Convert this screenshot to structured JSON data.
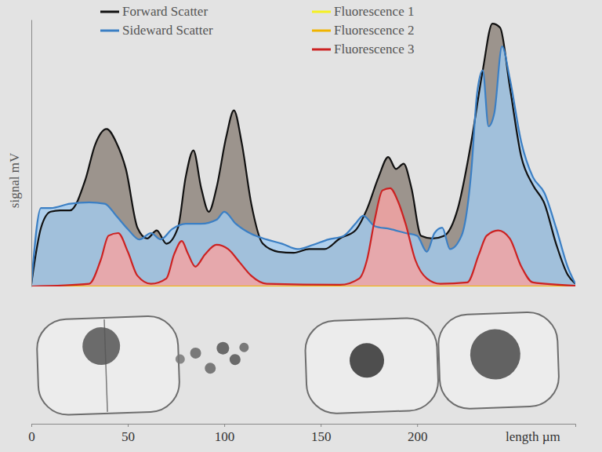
{
  "chart_data": {
    "type": "area",
    "xlabel": "length µm",
    "ylabel": "signal mV",
    "xlim": [
      0,
      282
    ],
    "xticks": [
      0,
      50,
      100,
      150,
      200
    ],
    "ylim": [
      0,
      100
    ],
    "yticks": [],
    "tick_labels": "x",
    "legend": "top",
    "series": [
      {
        "name": "Forward Scatter",
        "color": "#111111",
        "x": [
          0,
          5,
          10,
          15,
          20,
          28,
          33,
          39,
          44,
          49,
          55,
          60,
          65,
          70,
          76,
          80,
          84,
          88,
          92,
          96,
          101,
          105,
          109,
          114,
          120,
          128,
          136,
          144,
          152,
          160,
          168,
          174,
          180,
          185,
          189,
          193,
          197,
          202,
          208,
          214,
          221,
          228,
          234,
          239,
          243,
          248,
          254,
          260,
          266,
          272,
          278,
          282
        ],
        "values": [
          1,
          22,
          28,
          28.5,
          28.5,
          40,
          53,
          59,
          54,
          44,
          22,
          18,
          21,
          16,
          22,
          41,
          51,
          37,
          28,
          37,
          56,
          66,
          54,
          31,
          16,
          13,
          12.6,
          14,
          14,
          18,
          21,
          29,
          41,
          48.5,
          44,
          46,
          37,
          19,
          18,
          19,
          29,
          54,
          81,
          98.5,
          97,
          75,
          48.5,
          38,
          31,
          16,
          4.4,
          1
        ]
      },
      {
        "name": "Sideward Scatter",
        "color": "#3b7fc4",
        "x": [
          0,
          5,
          10,
          20,
          30,
          38,
          44,
          50,
          56,
          62,
          67,
          73,
          80,
          88,
          96,
          100,
          106,
          114,
          122,
          130,
          138,
          146,
          154,
          162,
          168,
          172,
          178,
          186,
          194,
          200,
          205,
          209,
          213,
          217,
          223,
          228,
          231,
          234,
          237,
          240,
          244,
          248,
          254,
          260,
          266,
          272,
          278,
          282
        ],
        "values": [
          1,
          29.4,
          29.4,
          31,
          31.5,
          31,
          26.5,
          21.5,
          17.6,
          20,
          17.6,
          21.5,
          23.5,
          23.5,
          25,
          28,
          23.5,
          19.7,
          17.6,
          16,
          14,
          15.6,
          17.6,
          19,
          23.5,
          26.5,
          22.6,
          21.5,
          20,
          19,
          13,
          20,
          22,
          14,
          19,
          42.6,
          72,
          81,
          60,
          65,
          90,
          78,
          54,
          41,
          35,
          22,
          7.4,
          1
        ]
      },
      {
        "name": "Fluorescence 1",
        "color": "#f5f020",
        "x": [
          0,
          282
        ],
        "values": [
          0,
          0
        ]
      },
      {
        "name": "Fluorescence 2",
        "color": "#f0b400",
        "x": [
          0,
          282
        ],
        "values": [
          0,
          0
        ]
      },
      {
        "name": "Fluorescence 3",
        "color": "#cc2222",
        "x": [
          0,
          30,
          36,
          40,
          45,
          50,
          55,
          62,
          70,
          74,
          78,
          81,
          85,
          90,
          96,
          102,
          108,
          114,
          122,
          160,
          170,
          174,
          178,
          182,
          186,
          190,
          194,
          199,
          205,
          212,
          226,
          232,
          236,
          242,
          248,
          254,
          260,
          282
        ],
        "values": [
          0,
          1,
          10,
          19,
          20,
          13,
          4,
          1,
          3,
          12,
          17,
          12.6,
          7.4,
          12,
          15.6,
          14,
          9,
          4,
          1,
          0.6,
          3,
          10,
          25,
          36,
          36.8,
          32,
          23.5,
          10,
          3,
          1,
          1.5,
          12,
          19,
          21,
          18,
          7.4,
          1.5,
          0.3
        ]
      }
    ]
  }
}
